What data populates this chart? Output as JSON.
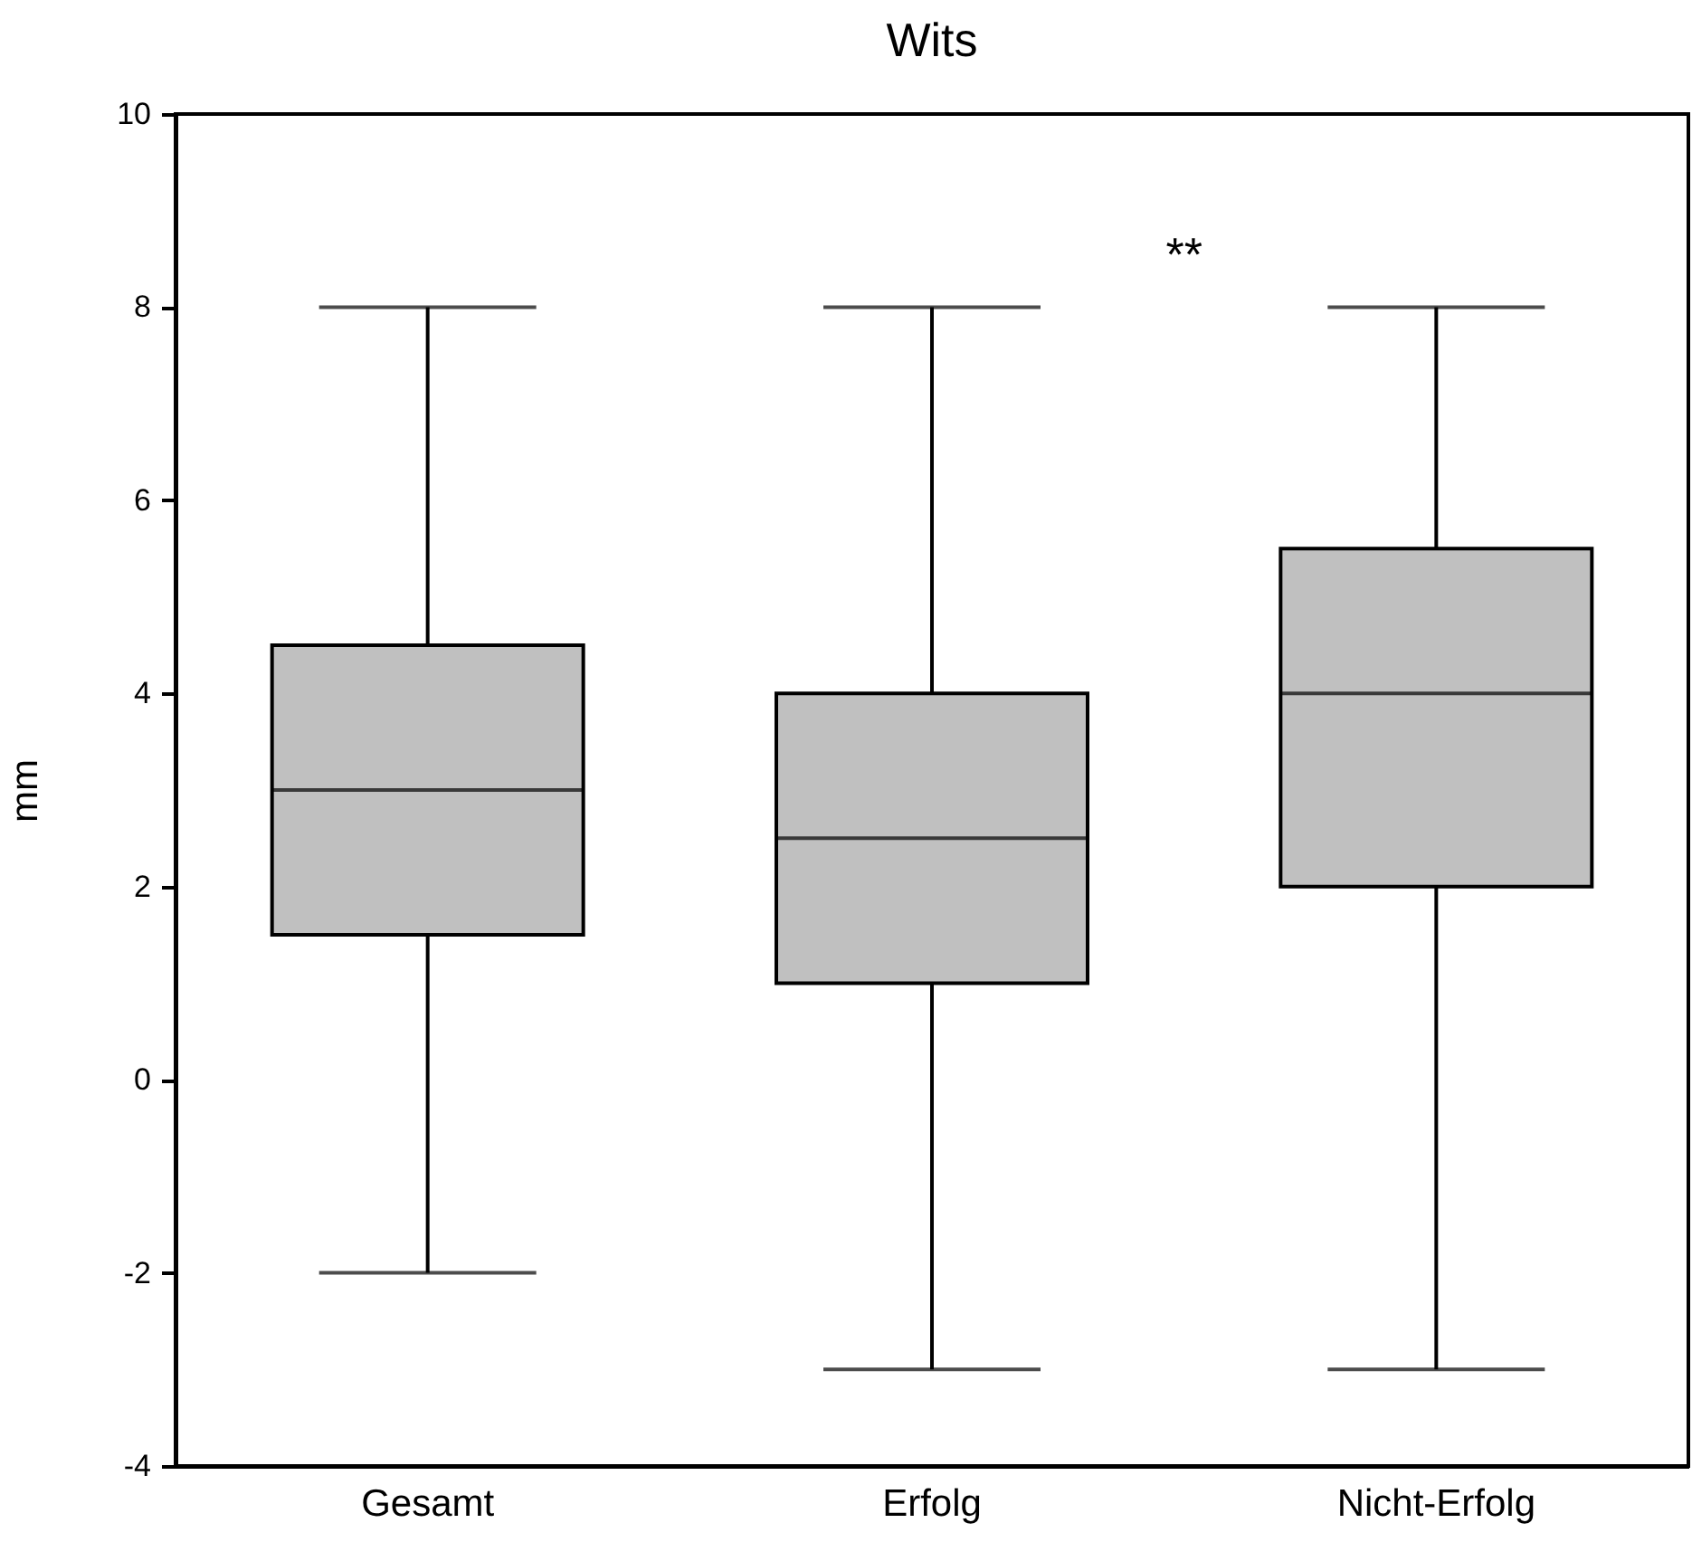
{
  "chart_data": {
    "type": "box",
    "title": "Wits",
    "ylabel": "mm",
    "categories": [
      "Gesamt",
      "Erfolg",
      "Nicht-Erfolg"
    ],
    "boxes": [
      {
        "low": -2,
        "q1": 1.5,
        "median": 3,
        "q3": 4.5,
        "high": 8
      },
      {
        "low": -3,
        "q1": 1,
        "median": 2.5,
        "q3": 4,
        "high": 8
      },
      {
        "low": -3,
        "q1": 2,
        "median": 4,
        "q3": 5.5,
        "high": 8
      }
    ],
    "color": "#c0c0c0",
    "ylim": [
      -4,
      10
    ],
    "yticks": [
      -4,
      -2,
      0,
      2,
      4,
      6,
      8,
      10
    ],
    "grid": false,
    "annotations": [
      "**"
    ]
  }
}
